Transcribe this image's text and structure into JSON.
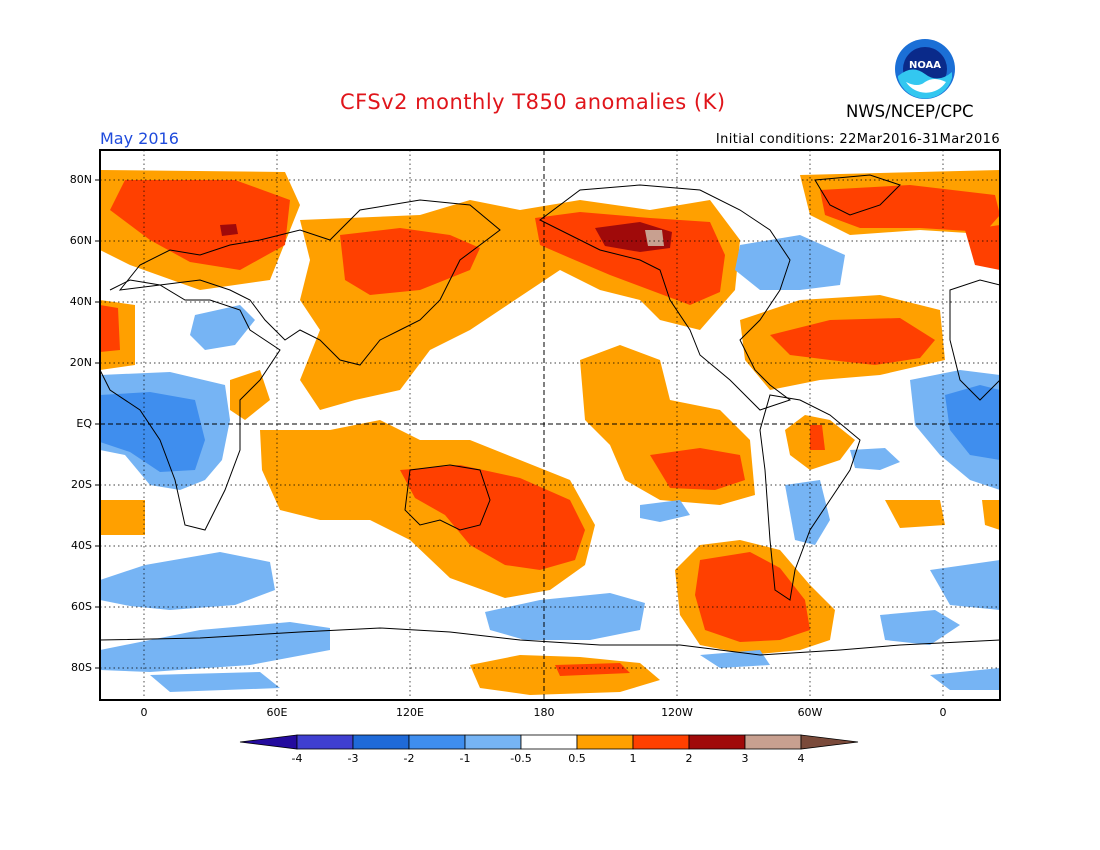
{
  "title": "CFSv2 monthly T850 anomalies (K)",
  "agency": "NWS/NCEP/CPC",
  "logo_text": "NOAA",
  "month": "May 2016",
  "initial_conditions": "Initial conditions: 22Mar2016-31Mar2016",
  "lat_ticks": [
    "80N",
    "60N",
    "40N",
    "20N",
    "EQ",
    "20S",
    "40S",
    "60S",
    "80S"
  ],
  "lon_ticks": [
    "0",
    "60E",
    "120E",
    "180",
    "120W",
    "60W",
    "0"
  ],
  "colorbar": {
    "labels": [
      "-4",
      "-3",
      "-2",
      "-1",
      "-0.5",
      "0.5",
      "1",
      "2",
      "3",
      "4"
    ],
    "colors": [
      "#240b9e",
      "#3f3fd0",
      "#1f6ad8",
      "#3f8eee",
      "#76b4f4",
      "#ffffff",
      "#ffa000",
      "#ff4000",
      "#a00a0a",
      "#c8a090",
      "#7a4a3a"
    ]
  }
}
